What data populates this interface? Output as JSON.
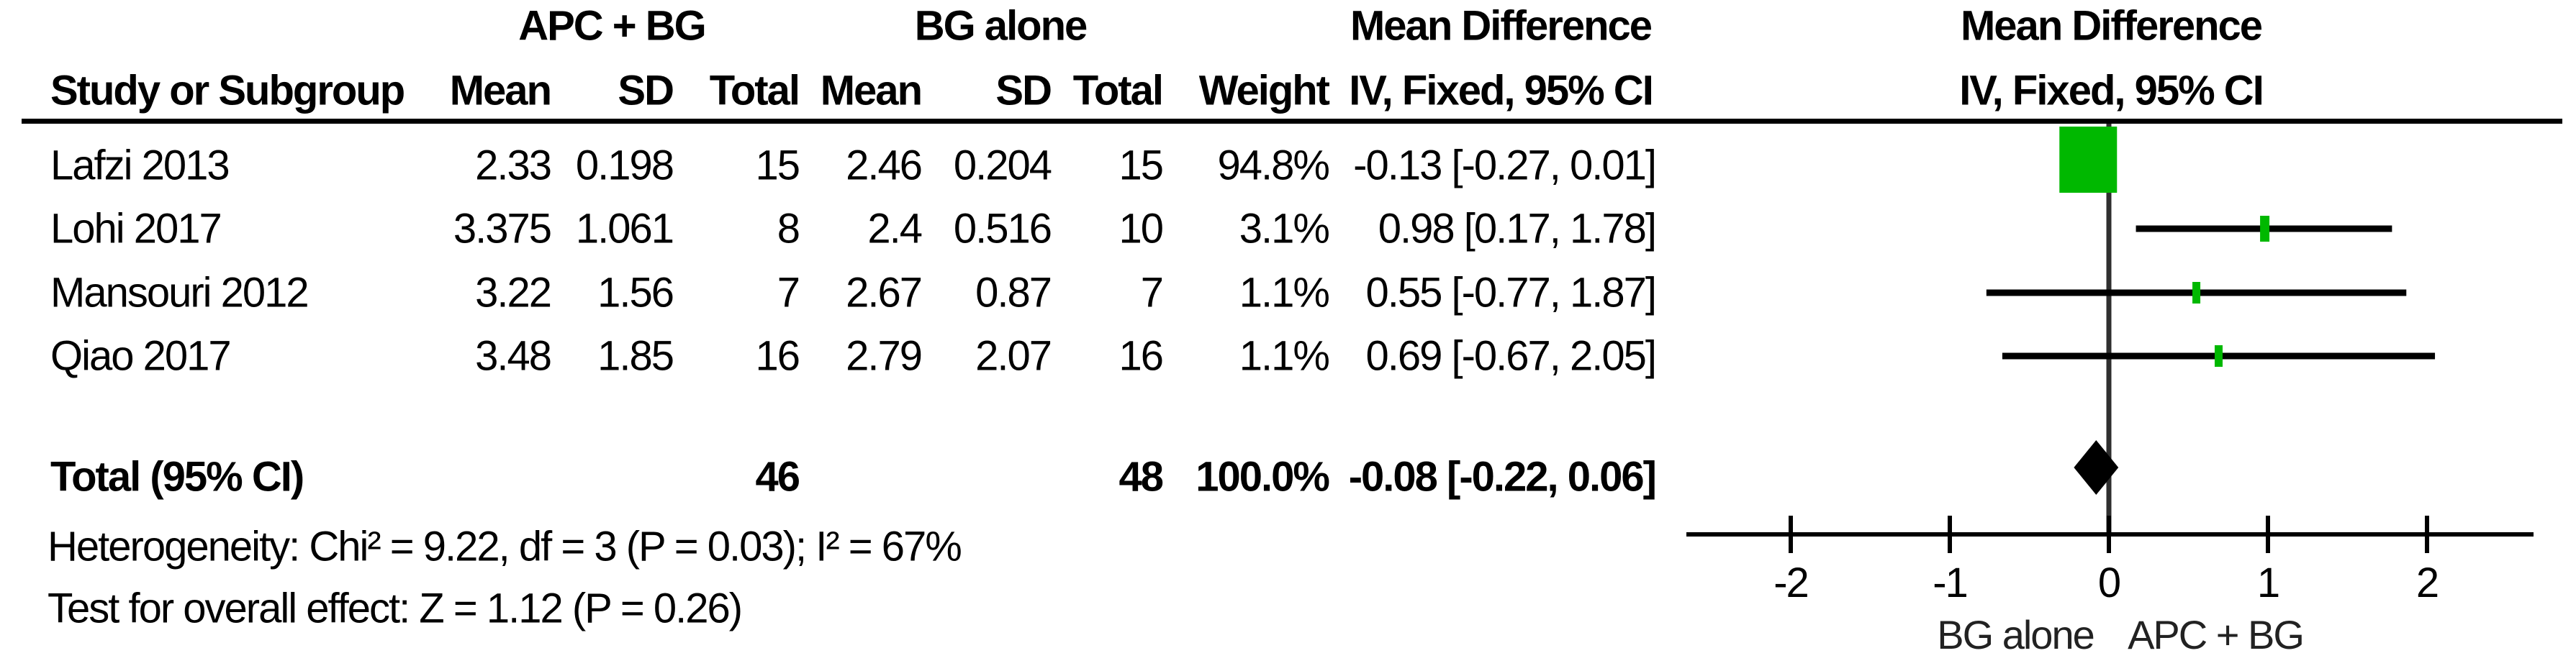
{
  "table": {
    "group1_header": "APC + BG",
    "group2_header": "BG alone",
    "md_header": "Mean Difference",
    "md_subheader": "IV, Fixed, 95% CI",
    "columns": {
      "study": "Study or Subgroup",
      "mean": "Mean",
      "sd": "SD",
      "total": "Total",
      "mean2": "Mean",
      "sd2": "SD",
      "total2": "Total",
      "weight": "Weight"
    },
    "rows": [
      {
        "study": "Lafzi 2013",
        "mean1": "2.33",
        "sd1": "0.198",
        "total1": "15",
        "mean2": "2.46",
        "sd2": "0.204",
        "total2": "15",
        "weight": "94.8%",
        "md_ci": "-0.13 [-0.27, 0.01]"
      },
      {
        "study": "Lohi 2017",
        "mean1": "3.375",
        "sd1": "1.061",
        "total1": "8",
        "mean2": "2.4",
        "sd2": "0.516",
        "total2": "10",
        "weight": "3.1%",
        "md_ci": "0.98 [0.17, 1.78]"
      },
      {
        "study": "Mansouri 2012",
        "mean1": "3.22",
        "sd1": "1.56",
        "total1": "7",
        "mean2": "2.67",
        "sd2": "0.87",
        "total2": "7",
        "weight": "1.1%",
        "md_ci": "0.55 [-0.77, 1.87]"
      },
      {
        "study": "Qiao 2017",
        "mean1": "3.48",
        "sd1": "1.85",
        "total1": "16",
        "mean2": "2.79",
        "sd2": "2.07",
        "total2": "16",
        "weight": "1.1%",
        "md_ci": "0.69 [-0.67, 2.05]"
      }
    ],
    "total_row": {
      "label": "Total (95% CI)",
      "total1": "46",
      "total2": "48",
      "weight": "100.0%",
      "md_ci": "-0.08 [-0.22, 0.06]"
    },
    "footnotes": {
      "heterogeneity": "Heterogeneity: Chi² = 9.22, df = 3 (P = 0.03); I² = 67%",
      "overall_effect": "Test for overall effect: Z = 1.12 (P = 0.26)"
    }
  },
  "chart_data": {
    "type": "forest",
    "title": "Mean Difference",
    "subtitle": "IV, Fixed, 95% CI",
    "x_axis": {
      "ticks": [
        -2,
        -1,
        0,
        1,
        2
      ],
      "range": [
        -2.65,
        2.67
      ],
      "left_label": "BG alone",
      "right_label": "APC + BG"
    },
    "studies": [
      {
        "name": "Lafzi 2013",
        "md": -0.13,
        "ci_low": -0.27,
        "ci_high": 0.01,
        "weight_pct": 94.8
      },
      {
        "name": "Lohi 2017",
        "md": 0.98,
        "ci_low": 0.17,
        "ci_high": 1.78,
        "weight_pct": 3.1
      },
      {
        "name": "Mansouri 2012",
        "md": 0.55,
        "ci_low": -0.77,
        "ci_high": 1.87,
        "weight_pct": 1.1
      },
      {
        "name": "Qiao 2017",
        "md": 0.69,
        "ci_low": -0.67,
        "ci_high": 2.05,
        "weight_pct": 1.1
      }
    ],
    "pooled": {
      "md": -0.08,
      "ci_low": -0.22,
      "ci_high": 0.06,
      "weight_pct": 100.0
    },
    "marker_color": "#00b800",
    "diamond_color": "#000000",
    "line_color": "#000000"
  }
}
